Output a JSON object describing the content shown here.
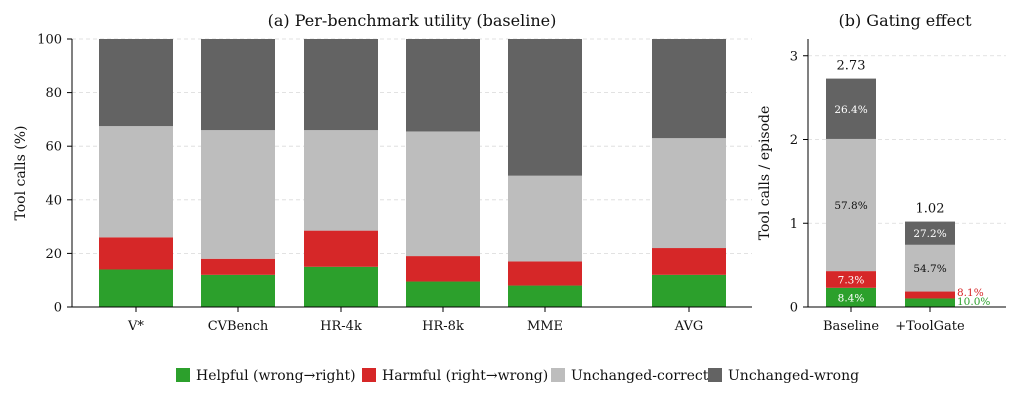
{
  "legend": [
    {
      "label": "Helpful (wrong→right)",
      "color": "#2ca02c"
    },
    {
      "label": "Harmful (right→wrong)",
      "color": "#d62728"
    },
    {
      "label": "Unchanged-correct",
      "color": "#bdbdbd"
    },
    {
      "label": "Unchanged-wrong",
      "color": "#636363"
    }
  ],
  "chart_data": [
    {
      "type": "bar",
      "stacked": true,
      "title": "(a) Per-benchmark utility (baseline)",
      "xlabel": "",
      "ylabel": "Tool calls (%)",
      "ylim": [
        0,
        100
      ],
      "yticks": [
        0,
        20,
        40,
        60,
        80,
        100
      ],
      "grid": "horizontal-dashed",
      "categories": [
        "V*",
        "CVBench",
        "HR-4k",
        "HR-8k",
        "MME",
        "AVG"
      ],
      "series": [
        {
          "name": "Helpful (wrong→right)",
          "color": "#2ca02c",
          "values": [
            14,
            12,
            15,
            9.5,
            8,
            12
          ]
        },
        {
          "name": "Harmful (right→wrong)",
          "color": "#d62728",
          "values": [
            12,
            6,
            13.5,
            9.5,
            9,
            10
          ]
        },
        {
          "name": "Unchanged-correct",
          "color": "#bdbdbd",
          "values": [
            41.5,
            48,
            37.5,
            46.5,
            32,
            41
          ]
        },
        {
          "name": "Unchanged-wrong",
          "color": "#636363",
          "values": [
            32.5,
            34,
            34,
            34.5,
            51,
            37
          ]
        }
      ]
    },
    {
      "type": "bar",
      "stacked": true,
      "title": "(b) Gating effect",
      "xlabel": "",
      "ylabel": "Tool calls / episode",
      "ylim": [
        0,
        3.2
      ],
      "yticks": [
        0,
        1,
        2,
        3
      ],
      "grid": "horizontal-dashed",
      "categories": [
        "Baseline",
        "+ToolGate"
      ],
      "totals": [
        2.73,
        1.02
      ],
      "total_labels": [
        "2.73",
        "1.02"
      ],
      "series": [
        {
          "name": "Helpful (wrong→right)",
          "color": "#2ca02c",
          "percents": [
            8.4,
            10.0
          ],
          "labels": [
            "8.4%",
            "10.0%"
          ]
        },
        {
          "name": "Harmful (right→wrong)",
          "color": "#d62728",
          "percents": [
            7.3,
            8.1
          ],
          "labels": [
            "7.3%",
            "8.1%"
          ]
        },
        {
          "name": "Unchanged-correct",
          "color": "#bdbdbd",
          "percents": [
            57.8,
            54.7
          ],
          "labels": [
            "57.8%",
            "54.7%"
          ]
        },
        {
          "name": "Unchanged-wrong",
          "color": "#636363",
          "percents": [
            26.4,
            27.2
          ],
          "labels": [
            "26.4%",
            "27.2%"
          ]
        }
      ]
    }
  ]
}
